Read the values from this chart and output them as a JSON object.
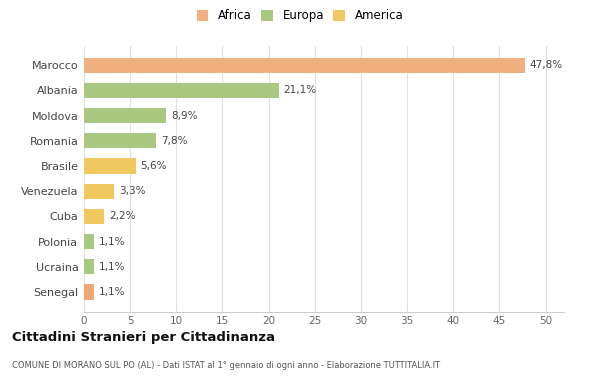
{
  "categories": [
    "Senegal",
    "Ucraina",
    "Polonia",
    "Cuba",
    "Venezuela",
    "Brasile",
    "Romania",
    "Moldova",
    "Albania",
    "Marocco"
  ],
  "values": [
    1.1,
    1.1,
    1.1,
    2.2,
    3.3,
    5.6,
    7.8,
    8.9,
    21.1,
    47.8
  ],
  "colors": [
    "#f0a870",
    "#a8c880",
    "#a8c880",
    "#f0c860",
    "#f0c860",
    "#f0c860",
    "#a8c880",
    "#a8c880",
    "#a8c880",
    "#f0b080"
  ],
  "labels": [
    "1,1%",
    "1,1%",
    "1,1%",
    "2,2%",
    "3,3%",
    "5,6%",
    "7,8%",
    "8,9%",
    "21,1%",
    "47,8%"
  ],
  "legend": [
    {
      "label": "Africa",
      "color": "#f0b080"
    },
    {
      "label": "Europa",
      "color": "#a8c880"
    },
    {
      "label": "America",
      "color": "#f0c860"
    }
  ],
  "title": "Cittadini Stranieri per Cittadinanza",
  "subtitle": "COMUNE DI MORANO SUL PO (AL) - Dati ISTAT al 1° gennaio di ogni anno - Elaborazione TUTTITALIA.IT",
  "xlim": [
    0,
    52
  ],
  "xticks": [
    0,
    5,
    10,
    15,
    20,
    25,
    30,
    35,
    40,
    45,
    50
  ],
  "background_color": "#ffffff",
  "grid_color": "#e0e0e0"
}
